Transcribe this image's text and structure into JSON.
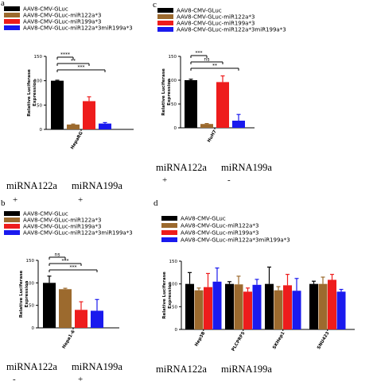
{
  "legend_series": [
    "AAV8-CMV-GLuc",
    "AAV8-CMV-GLuc-miR122a*3",
    "AAV8-CMV-GLuc-miR199a*3",
    "AAV8-CMV-GLuc-miR122a*3miR199a*3"
  ],
  "colors": [
    "#000000",
    "#9c6a2e",
    "#ee1c1c",
    "#1a1aee"
  ],
  "ylabel_line1": "Relative Luciferase",
  "ylabel_line2": "Expression",
  "mirna": {
    "a": "miRNA122a",
    "b": "miRNA199a"
  },
  "chart_data": [
    {
      "panel": "a",
      "type": "bar",
      "categories": [
        "HepaRG"
      ],
      "series": [
        {
          "name": "AAV8-CMV-GLuc",
          "values": [
            100
          ],
          "errors": [
            1
          ]
        },
        {
          "name": "AAV8-CMV-GLuc-miR122a*3",
          "values": [
            10
          ],
          "errors": [
            1
          ]
        },
        {
          "name": "AAV8-CMV-GLuc-miR199a*3",
          "values": [
            58
          ],
          "errors": [
            9
          ]
        },
        {
          "name": "AAV8-CMV-GLuc-miR122a*3miR199a*3",
          "values": [
            12
          ],
          "errors": [
            2
          ]
        }
      ],
      "ylim": [
        0,
        150
      ],
      "yticks": [
        0,
        50,
        100,
        150
      ],
      "significance": [
        {
          "from": 0,
          "to": 1,
          "label": "****"
        },
        {
          "from": 0,
          "to": 2,
          "label": "**"
        },
        {
          "from": 0,
          "to": 3,
          "label": "***"
        }
      ],
      "signs": [
        "+",
        "+"
      ]
    },
    {
      "panel": "c",
      "type": "bar",
      "categories": [
        "HuH7"
      ],
      "series": [
        {
          "name": "AAV8-CMV-GLuc",
          "values": [
            100
          ],
          "errors": [
            2
          ]
        },
        {
          "name": "AAV8-CMV-GLuc-miR122a*3",
          "values": [
            8
          ],
          "errors": [
            1
          ]
        },
        {
          "name": "AAV8-CMV-GLuc-miR199a*3",
          "values": [
            96
          ],
          "errors": [
            13
          ]
        },
        {
          "name": "AAV8-CMV-GLuc-miR122a*3miR199a*3",
          "values": [
            15
          ],
          "errors": [
            13
          ]
        }
      ],
      "ylim": [
        0,
        150
      ],
      "yticks": [
        0,
        50,
        100,
        150
      ],
      "significance": [
        {
          "from": 0,
          "to": 1,
          "label": "***"
        },
        {
          "from": 0,
          "to": 2,
          "label": "ns"
        },
        {
          "from": 0,
          "to": 3,
          "label": "**"
        }
      ],
      "signs": [
        "+",
        "-"
      ]
    },
    {
      "panel": "b",
      "type": "bar",
      "categories": [
        "Hepa1-6"
      ],
      "series": [
        {
          "name": "AAV8-CMV-GLuc",
          "values": [
            100
          ],
          "errors": [
            15
          ]
        },
        {
          "name": "AAV8-CMV-GLuc-miR122a*3",
          "values": [
            86
          ],
          "errors": [
            2
          ]
        },
        {
          "name": "AAV8-CMV-GLuc-miR199a*3",
          "values": [
            40
          ],
          "errors": [
            18
          ]
        },
        {
          "name": "AAV8-CMV-GLuc-miR122a*3miR199a*3",
          "values": [
            38
          ],
          "errors": [
            25
          ]
        }
      ],
      "ylim": [
        0,
        150
      ],
      "yticks": [
        0,
        50,
        100,
        150
      ],
      "significance": [
        {
          "from": 0,
          "to": 1,
          "label": "ns"
        },
        {
          "from": 0,
          "to": 2,
          "label": "***"
        },
        {
          "from": 0,
          "to": 3,
          "label": "***"
        }
      ],
      "signs": [
        "-",
        "+"
      ]
    },
    {
      "panel": "d",
      "type": "bar",
      "categories": [
        "Hep3B",
        "PLCPRF5",
        "SKHep1",
        "SNU423"
      ],
      "series": [
        {
          "name": "AAV8-CMV-GLuc",
          "values": [
            100,
            100,
            100,
            100
          ],
          "errors": [
            25,
            5,
            37,
            6
          ]
        },
        {
          "name": "AAV8-CMV-GLuc-miR122a*3",
          "values": [
            86,
            99,
            86,
            100
          ],
          "errors": [
            5,
            18,
            8,
            15
          ]
        },
        {
          "name": "AAV8-CMV-GLuc-miR199a*3",
          "values": [
            93,
            83,
            97,
            109
          ],
          "errors": [
            30,
            8,
            24,
            12
          ]
        },
        {
          "name": "AAV8-CMV-GLuc-miR122a*3miR199a*3",
          "values": [
            105,
            98,
            85,
            83
          ],
          "errors": [
            30,
            12,
            27,
            5
          ]
        }
      ],
      "ylim": [
        0,
        150
      ],
      "yticks": [
        0,
        50,
        100,
        150
      ],
      "significance": [],
      "signs": []
    }
  ],
  "panels": {
    "a": "a",
    "b": "b",
    "c": "c",
    "d": "d"
  }
}
